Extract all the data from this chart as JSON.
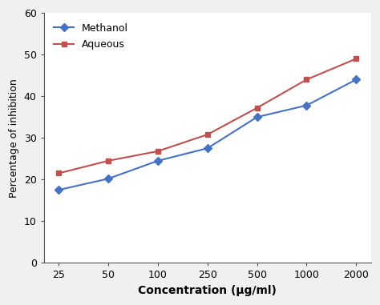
{
  "x_positions": [
    0,
    1,
    2,
    3,
    4,
    5,
    6
  ],
  "methanol_y": [
    17.5,
    20.2,
    24.5,
    27.5,
    35.0,
    37.8,
    44.0
  ],
  "aqueous_y": [
    21.5,
    24.5,
    26.8,
    30.8,
    37.2,
    44.0,
    49.0
  ],
  "methanol_color": "#4472C4",
  "aqueous_color": "#C0504D",
  "methanol_label": "Methanol",
  "aqueous_label": "Aqueous",
  "xlabel": "Concentration (μg/ml)",
  "ylabel": "Percentage of inhibition",
  "ylim": [
    0,
    60
  ],
  "yticks": [
    0,
    10,
    20,
    30,
    40,
    50,
    60
  ],
  "xtick_labels": [
    "25",
    "50",
    "100",
    "250",
    "500",
    "1000",
    "2000"
  ],
  "background_color": "#ffffff",
  "figure_bg": "#f0f0f0"
}
